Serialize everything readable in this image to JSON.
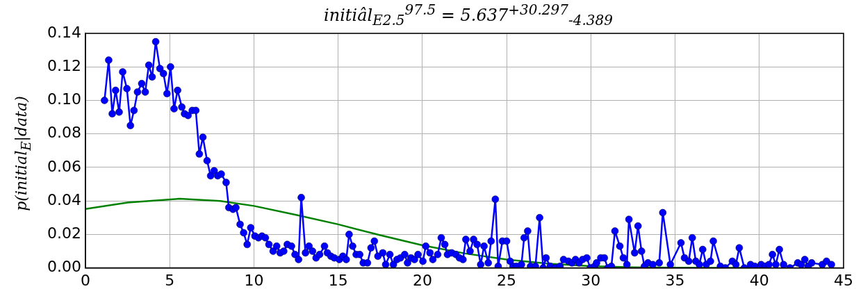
{
  "chart_data": {
    "type": "line",
    "title": "initiâl$_{E2.5}$$^{97.5}$ = 5.637$^{+30.297}$$_{-4.389}$",
    "ylabel": "p(initial$_{E}$|data)",
    "xlim": [
      0,
      45
    ],
    "xticks": [
      0,
      5,
      10,
      15,
      20,
      25,
      30,
      35,
      40,
      45
    ],
    "ylim": [
      0,
      0.14
    ],
    "yticks": [
      {
        "value": 0,
        "label": "0.00"
      },
      {
        "value": 0.02,
        "label": "0.02"
      },
      {
        "value": 0.04,
        "label": "0.04"
      },
      {
        "value": 0.06,
        "label": "0.06"
      },
      {
        "value": 0.08,
        "label": "0.08"
      },
      {
        "value": 0.1,
        "label": "0.10"
      },
      {
        "value": 0.12,
        "label": "0.12"
      },
      {
        "value": 0.14,
        "label": "0.14"
      }
    ],
    "grid": true,
    "line_style": "solid",
    "series": [
      {
        "color": "#0000ff",
        "marker": "circle",
        "x": [
          1.13,
          1.38,
          1.59,
          1.79,
          2.0,
          2.21,
          2.46,
          2.67,
          2.88,
          3.09,
          3.34,
          3.55,
          3.76,
          3.96,
          4.17,
          4.42,
          4.63,
          4.84,
          5.05,
          5.26,
          5.47,
          5.72,
          5.88,
          6.09,
          6.34,
          6.55,
          6.76,
          6.97,
          7.22,
          7.43,
          7.64,
          7.85,
          8.06,
          8.35,
          8.51,
          8.76,
          8.93,
          9.18,
          9.39,
          9.6,
          9.81,
          10.06,
          10.27,
          10.48,
          10.68,
          10.89,
          11.14,
          11.35,
          11.56,
          11.77,
          11.98,
          12.23,
          12.44,
          12.65,
          12.81,
          13.06,
          13.27,
          13.48,
          13.69,
          13.9,
          14.19,
          14.36,
          14.57,
          14.77,
          15.07,
          15.28,
          15.48,
          15.65,
          15.86,
          16.07,
          16.28,
          16.49,
          16.74,
          16.95,
          17.15,
          17.36,
          17.65,
          17.82,
          18.07,
          18.28,
          18.49,
          18.7,
          18.95,
          19.12,
          19.32,
          19.53,
          19.74,
          20.03,
          20.2,
          20.45,
          20.62,
          20.91,
          21.12,
          21.33,
          21.49,
          21.74,
          21.99,
          22.2,
          22.41,
          22.58,
          22.83,
          23.04,
          23.25,
          23.46,
          23.66,
          23.91,
          24.08,
          24.33,
          24.5,
          24.75,
          25.0,
          25.21,
          25.38,
          25.58,
          25.88,
          26.04,
          26.25,
          26.42,
          26.71,
          26.96,
          27.17,
          27.34,
          27.59,
          27.88,
          28.17,
          28.38,
          28.67,
          28.88,
          29.09,
          29.3,
          29.51,
          29.76,
          29.97,
          30.22,
          30.34,
          30.59,
          30.8,
          31.01,
          31.22,
          31.43,
          31.72,
          31.93,
          32.14,
          32.26,
          32.6,
          32.8,
          33.01,
          33.18,
          33.39,
          33.68,
          34.06,
          34.27,
          34.72,
          35.35,
          35.56,
          35.81,
          36.02,
          36.23,
          36.44,
          36.64,
          36.85,
          37.1,
          37.27,
          37.69,
          37.98,
          38.4,
          38.61,
          38.81,
          39.11,
          39.48,
          39.73,
          40.11,
          40.36,
          40.57,
          40.78,
          40.98,
          41.19,
          41.44,
          41.82,
          42.28,
          42.49,
          42.7,
          42.9,
          43.11,
          43.74,
          43.99,
          44.28
        ],
        "values": [
          0.1,
          0.124,
          0.092,
          0.106,
          0.093,
          0.117,
          0.107,
          0.085,
          0.094,
          0.105,
          0.11,
          0.105,
          0.121,
          0.114,
          0.135,
          0.119,
          0.116,
          0.104,
          0.12,
          0.095,
          0.106,
          0.096,
          0.092,
          0.091,
          0.094,
          0.094,
          0.068,
          0.078,
          0.064,
          0.055,
          0.058,
          0.055,
          0.056,
          0.051,
          0.036,
          0.035,
          0.036,
          0.026,
          0.021,
          0.014,
          0.024,
          0.019,
          0.018,
          0.019,
          0.018,
          0.014,
          0.01,
          0.013,
          0.009,
          0.01,
          0.014,
          0.013,
          0.008,
          0.005,
          0.042,
          0.009,
          0.013,
          0.01,
          0.006,
          0.008,
          0.013,
          0.009,
          0.007,
          0.006,
          0.005,
          0.007,
          0.005,
          0.02,
          0.013,
          0.008,
          0.008,
          0.003,
          0.003,
          0.012,
          0.016,
          0.007,
          0.009,
          0.002,
          0.008,
          0.002,
          0.005,
          0.006,
          0.008,
          0.003,
          0.006,
          0.005,
          0.008,
          0.004,
          0.013,
          0.009,
          0.005,
          0.008,
          0.018,
          0.014,
          0.008,
          0.009,
          0.008,
          0.006,
          0.005,
          0.017,
          0.01,
          0.017,
          0.014,
          0.002,
          0.013,
          0.003,
          0.016,
          0.041,
          0.001,
          0.016,
          0.016,
          0.004,
          0.001,
          0.001,
          0.002,
          0.018,
          0.022,
          0.001,
          0.001,
          0.03,
          0.0,
          0.006,
          0.001,
          0.0,
          0.001,
          0.005,
          0.004,
          0.003,
          0.005,
          0.003,
          0.005,
          0.006,
          0.0,
          0.001,
          0.003,
          0.006,
          0.006,
          0.0,
          0.001,
          0.022,
          0.013,
          0.006,
          0.002,
          0.029,
          0.009,
          0.025,
          0.01,
          0.001,
          0.003,
          0.002,
          0.003,
          0.033,
          0.002,
          0.015,
          0.006,
          0.004,
          0.018,
          0.004,
          0.002,
          0.011,
          0.002,
          0.004,
          0.016,
          0.001,
          0.0,
          0.004,
          0.002,
          0.012,
          0.0,
          0.002,
          0.001,
          0.002,
          0.001,
          0.002,
          0.008,
          0.002,
          0.011,
          0.002,
          0.0,
          0.003,
          0.002,
          0.005,
          0.001,
          0.003,
          0.002,
          0.004,
          0.002
        ]
      },
      {
        "color": "#008000",
        "marker": "none",
        "x": [
          0,
          2.5,
          5.6,
          8,
          10,
          12.5,
          15,
          17.5,
          20,
          22.5,
          25,
          27.5,
          30,
          32.5,
          35,
          40
        ],
        "values": [
          0.0352,
          0.039,
          0.0413,
          0.04,
          0.037,
          0.0317,
          0.026,
          0.0195,
          0.0135,
          0.0087,
          0.005,
          0.0025,
          0.0011,
          0.0004,
          0.0001,
          0
        ]
      }
    ]
  }
}
